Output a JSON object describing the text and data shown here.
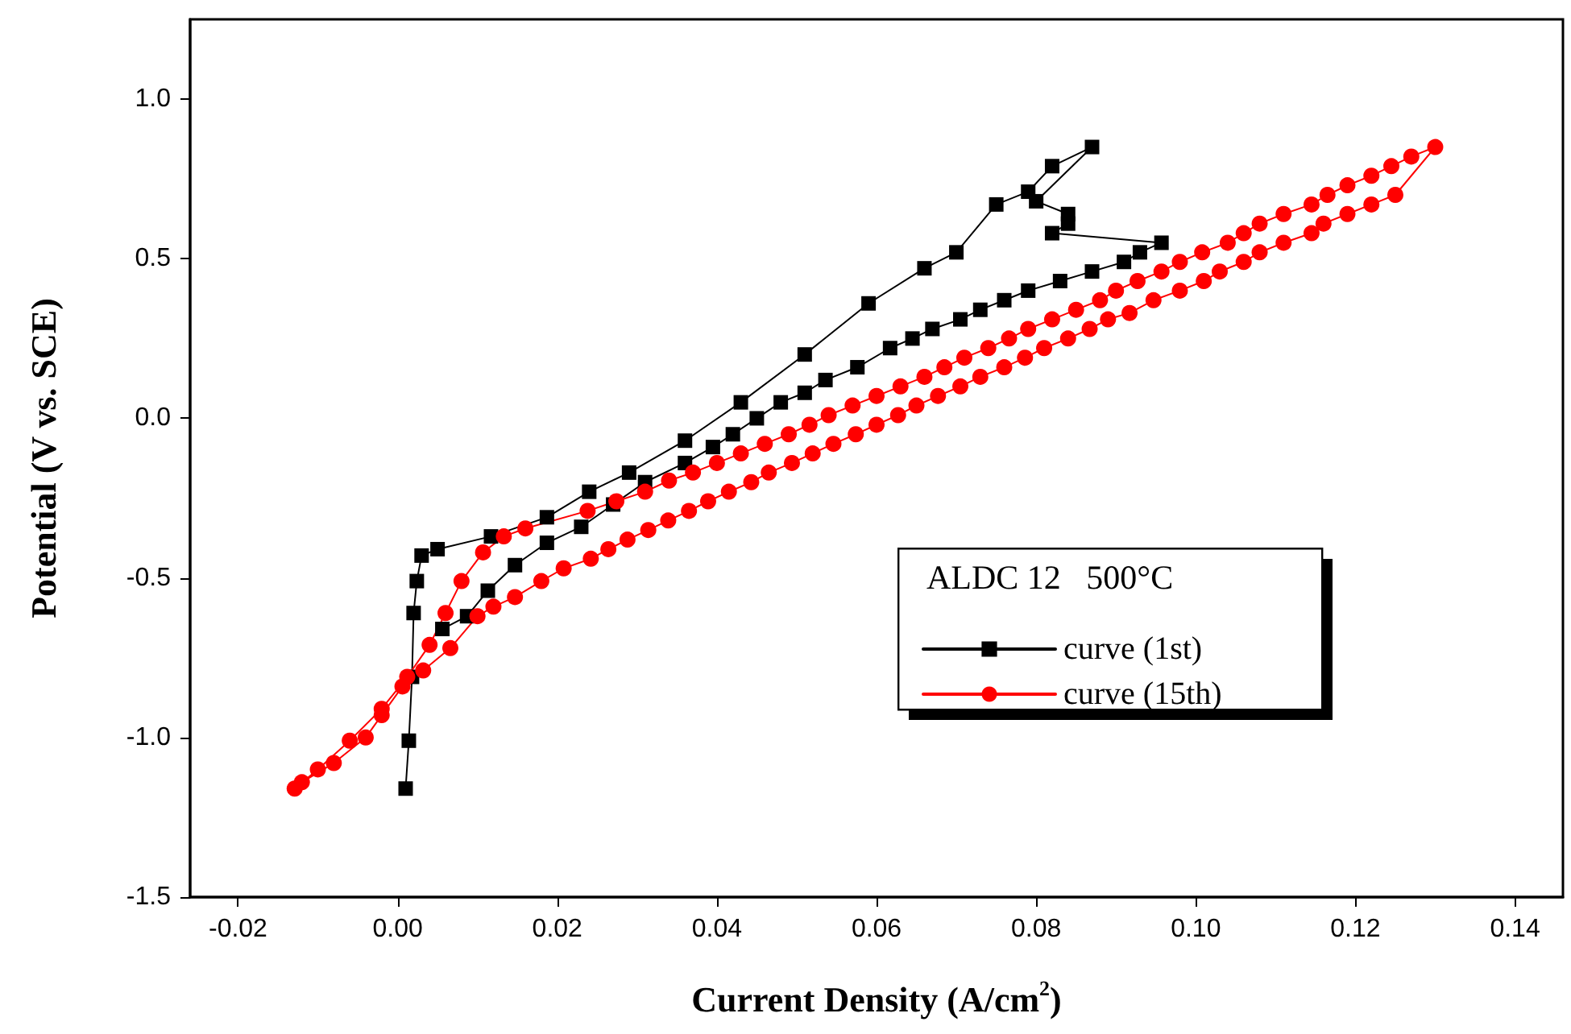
{
  "chart_data": {
    "type": "line",
    "xlabel": "Current Density (A/cm$^{2}$)",
    "ylabel": "Potential (V vs. SCE)",
    "legend_title": "ALDC 12   500°C",
    "legend": "bottom right",
    "grid": false,
    "line_style": "solid",
    "xlim": [
      -0.026,
      0.146
    ],
    "ylim": [
      -1.5,
      1.25
    ],
    "xticks": [
      {
        "value": -0.02,
        "label": "-0.02"
      },
      {
        "value": 0,
        "label": "0.00"
      },
      {
        "value": 0.02,
        "label": "0.02"
      },
      {
        "value": 0.04,
        "label": "0.04"
      },
      {
        "value": 0.06,
        "label": "0.06"
      },
      {
        "value": 0.08,
        "label": "0.08"
      },
      {
        "value": 0.1,
        "label": "0.10"
      },
      {
        "value": 0.12,
        "label": "0.12"
      },
      {
        "value": 0.14,
        "label": "0.14"
      }
    ],
    "yticks": [
      {
        "value": -1.5,
        "label": "-1.5"
      },
      {
        "value": -1,
        "label": "-1.0"
      },
      {
        "value": -0.5,
        "label": "-0.5"
      },
      {
        "value": 0,
        "label": "0.0"
      },
      {
        "value": 0.5,
        "label": "0.5"
      },
      {
        "value": 1,
        "label": "1.0"
      }
    ],
    "series": [
      {
        "name": "curve (1st)",
        "color": "#000000",
        "marker": "square",
        "x": [
          0.001,
          0.0014,
          0.0018,
          0.002,
          0.0024,
          0.003,
          0.005,
          0.0117,
          0.0187,
          0.024,
          0.029,
          0.036,
          0.043,
          0.051,
          0.059,
          0.066,
          0.07,
          0.075,
          0.079,
          0.082,
          0.087,
          0.08,
          0.084,
          0.084,
          0.082,
          0.0957,
          0.093,
          0.091,
          0.087,
          0.083,
          0.079,
          0.076,
          0.073,
          0.0705,
          0.067,
          0.0645,
          0.0617,
          0.0576,
          0.0536,
          0.051,
          0.048,
          0.045,
          0.042,
          0.0395,
          0.036,
          0.031,
          0.027,
          0.023,
          0.0187,
          0.0147,
          0.0113,
          0.0087,
          0.0056
        ],
        "values": [
          -1.16,
          -1.01,
          -0.81,
          -0.61,
          -0.51,
          -0.43,
          -0.41,
          -0.37,
          -0.31,
          -0.23,
          -0.17,
          -0.07,
          0.05,
          0.2,
          0.36,
          0.47,
          0.52,
          0.67,
          0.71,
          0.79,
          0.85,
          0.68,
          0.64,
          0.61,
          0.58,
          0.55,
          0.52,
          0.49,
          0.46,
          0.43,
          0.4,
          0.37,
          0.34,
          0.31,
          0.28,
          0.25,
          0.22,
          0.16,
          0.12,
          0.08,
          0.05,
          0.0,
          -0.05,
          -0.09,
          -0.14,
          -0.2,
          -0.27,
          -0.34,
          -0.39,
          -0.46,
          -0.54,
          -0.62,
          -0.66
        ]
      },
      {
        "name": "curve (15th)",
        "color": "#ff0000",
        "marker": "circle",
        "x": [
          -0.0129,
          -0.01,
          -0.006,
          -0.002,
          0.0012,
          0.004,
          0.006,
          0.008,
          0.0107,
          0.0133,
          0.016,
          0.0238,
          0.0274,
          0.031,
          0.034,
          0.037,
          0.04,
          0.043,
          0.046,
          0.049,
          0.0516,
          0.054,
          0.057,
          0.06,
          0.063,
          0.066,
          0.0685,
          0.071,
          0.074,
          0.0766,
          0.079,
          0.082,
          0.085,
          0.088,
          0.09,
          0.0927,
          0.0957,
          0.098,
          0.1008,
          0.104,
          0.106,
          0.108,
          0.111,
          0.1145,
          0.1165,
          0.119,
          0.122,
          0.1245,
          0.127,
          0.13,
          0.125,
          0.122,
          0.119,
          0.116,
          0.1145,
          0.111,
          0.108,
          0.106,
          0.103,
          0.101,
          0.098,
          0.0947,
          0.0917,
          0.089,
          0.0867,
          0.084,
          0.081,
          0.0786,
          0.076,
          0.073,
          0.0705,
          0.0677,
          0.065,
          0.0627,
          0.06,
          0.0574,
          0.0546,
          0.052,
          0.0494,
          0.0465,
          0.0443,
          0.0415,
          0.0389,
          0.0365,
          0.0339,
          0.0314,
          0.0288,
          0.0264,
          0.0242,
          0.0208,
          0.018,
          0.0147,
          0.012,
          0.01,
          0.0066,
          0.0032,
          0.0006,
          -0.002,
          -0.004,
          -0.008,
          -0.012
        ],
        "values": [
          -1.16,
          -1.1,
          -1.01,
          -0.91,
          -0.81,
          -0.71,
          -0.61,
          -0.51,
          -0.42,
          -0.37,
          -0.345,
          -0.29,
          -0.26,
          -0.23,
          -0.195,
          -0.17,
          -0.14,
          -0.11,
          -0.08,
          -0.05,
          -0.02,
          0.01,
          0.04,
          0.07,
          0.1,
          0.13,
          0.16,
          0.19,
          0.22,
          0.25,
          0.28,
          0.31,
          0.34,
          0.37,
          0.4,
          0.43,
          0.46,
          0.49,
          0.52,
          0.55,
          0.58,
          0.61,
          0.64,
          0.67,
          0.7,
          0.73,
          0.76,
          0.79,
          0.82,
          0.85,
          0.7,
          0.67,
          0.64,
          0.61,
          0.58,
          0.55,
          0.52,
          0.49,
          0.46,
          0.43,
          0.4,
          0.37,
          0.33,
          0.31,
          0.28,
          0.25,
          0.22,
          0.19,
          0.16,
          0.13,
          0.1,
          0.07,
          0.04,
          0.01,
          -0.02,
          -0.05,
          -0.08,
          -0.11,
          -0.14,
          -0.17,
          -0.2,
          -0.23,
          -0.26,
          -0.29,
          -0.32,
          -0.35,
          -0.38,
          -0.41,
          -0.44,
          -0.47,
          -0.51,
          -0.56,
          -0.59,
          -0.62,
          -0.72,
          -0.79,
          -0.84,
          -0.93,
          -1.0,
          -1.08,
          -1.14
        ]
      }
    ]
  }
}
